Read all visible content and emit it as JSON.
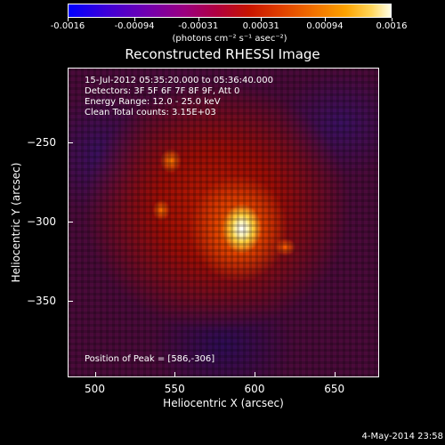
{
  "chart_data": {
    "type": "heatmap",
    "title": "Reconstructed RHESSI Image",
    "xlabel": "Heliocentric X (arcsec)",
    "ylabel": "Heliocentric Y (arcsec)",
    "xlim": [
      483,
      678
    ],
    "ylim": [
      -398,
      -203
    ],
    "x_ticks": [
      500,
      550,
      600,
      650
    ],
    "y_ticks": [
      -250,
      -300,
      -350
    ],
    "peak": {
      "x": 586,
      "y": -306
    },
    "colorbar": {
      "min": -0.0016,
      "max": 0.0016,
      "tick_labels": [
        "-0.0016",
        "-0.00094",
        "-0.00031",
        "0.00031",
        "0.00094",
        "0.0016"
      ],
      "tick_values": [
        -0.0016,
        -0.00094,
        -0.00031,
        0.00031,
        0.00094,
        0.0016
      ],
      "units": "(photons cm⁻² s⁻¹ asec⁻²)",
      "colormap": "RHESSI std gamma (blue-purple-red-yellow-white)"
    },
    "info_lines": [
      "15-Jul-2012 05:35:20.000 to 05:36:40.000",
      "Detectors: 3F 5F 6F 7F 8F 9F, Att 0",
      "Energy Range: 12.0 - 25.0 keV",
      "Clean     Total counts: 3.15E+03"
    ],
    "peak_label": "Position of Peak = [586,-306]"
  },
  "footer": {
    "date": "4-May-2014 23:58"
  },
  "colors": {
    "background": "#000000",
    "text": "#ffffff",
    "peak": "#ffffff"
  }
}
